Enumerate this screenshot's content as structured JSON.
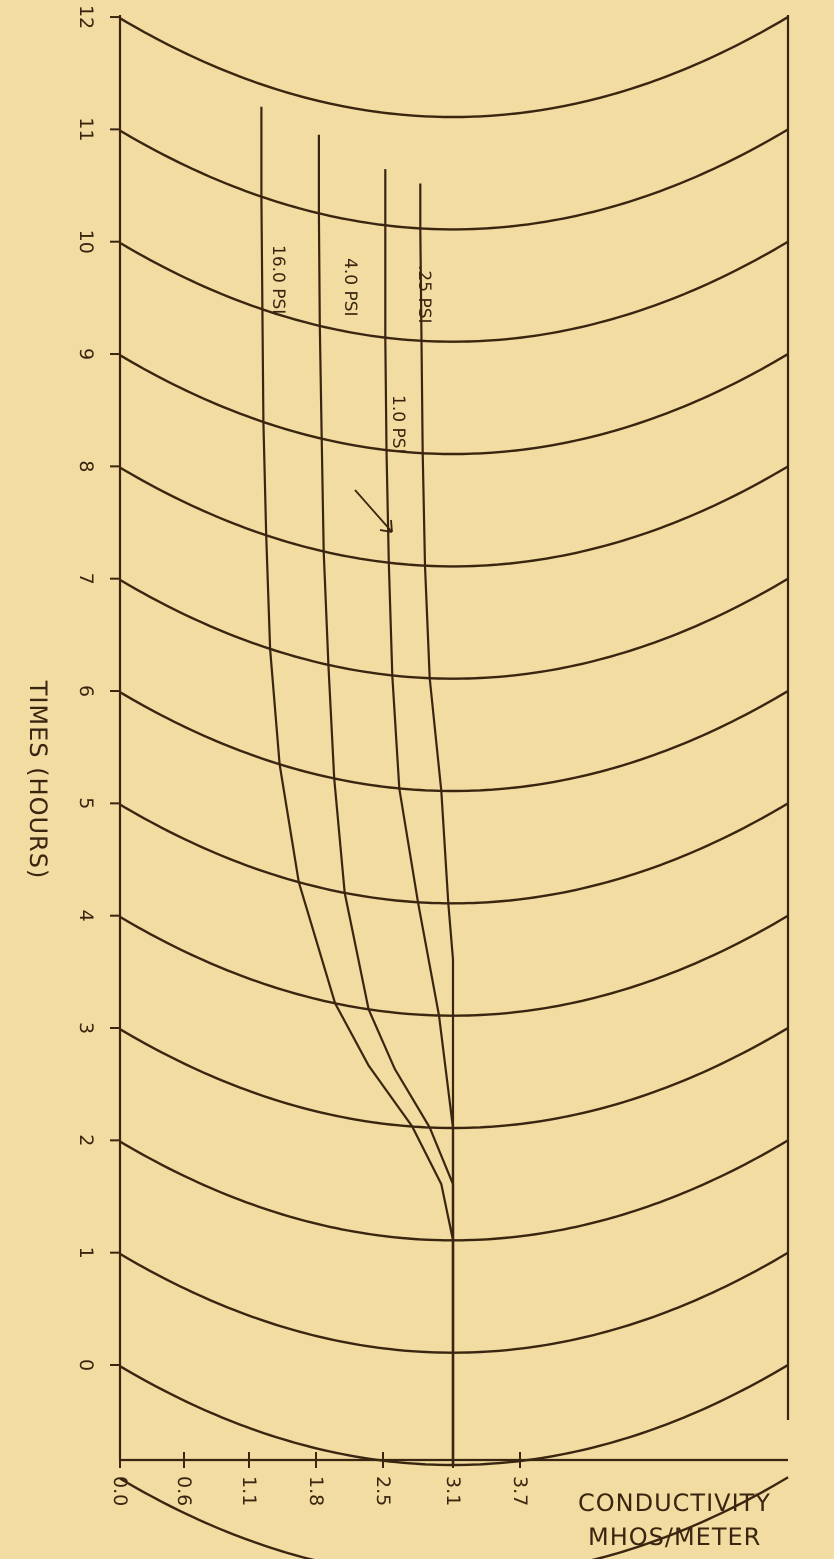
{
  "chart_data": {
    "type": "line",
    "title": "",
    "orientation": "rotated (time axis runs vertically on the page)",
    "ylabel": "TIMES (HOURS)",
    "xlabel_line1": "CONDUCTIVITY",
    "xlabel_line2": "MHOS/METER",
    "y_ticks": [
      "0",
      "1",
      "2",
      "3",
      "4",
      "5",
      "6",
      "7",
      "8",
      "9",
      "10",
      "11",
      "12"
    ],
    "x_ticks": [
      "0.0",
      "0.6",
      "1.1",
      "1.8",
      "2.5",
      "3.1",
      "3.7"
    ],
    "ylim": [
      0,
      12
    ],
    "time_grid_curved": true,
    "series": [
      {
        "name": ".25 PSI",
        "points": [
          [
            0,
            3.1
          ],
          [
            4.5,
            3.1
          ],
          [
            5.0,
            3.06
          ],
          [
            6.0,
            3.0
          ],
          [
            7.0,
            2.9
          ],
          [
            8.0,
            2.86
          ],
          [
            9.0,
            2.84
          ],
          [
            10.0,
            2.83
          ],
          [
            11.0,
            2.82
          ],
          [
            11.4,
            2.82
          ]
        ]
      },
      {
        "name": "1.0 PSI",
        "points": [
          [
            0,
            3.1
          ],
          [
            3.0,
            3.1
          ],
          [
            4.0,
            2.98
          ],
          [
            5.0,
            2.8
          ],
          [
            6.0,
            2.64
          ],
          [
            7.0,
            2.58
          ],
          [
            8.0,
            2.55
          ],
          [
            9.0,
            2.53
          ],
          [
            10.0,
            2.52
          ],
          [
            11.0,
            2.52
          ],
          [
            11.5,
            2.52
          ]
        ]
      },
      {
        "name": "4.0 PSI",
        "points": [
          [
            0,
            3.1
          ],
          [
            2.5,
            3.1
          ],
          [
            3.0,
            2.9
          ],
          [
            3.5,
            2.6
          ],
          [
            4.0,
            2.35
          ],
          [
            5.0,
            2.1
          ],
          [
            6.0,
            1.99
          ],
          [
            7.0,
            1.93
          ],
          [
            8.0,
            1.88
          ],
          [
            9.0,
            1.86
          ],
          [
            10.0,
            1.84
          ],
          [
            11.0,
            1.83
          ],
          [
            11.7,
            1.83
          ]
        ]
      },
      {
        "name": "16.0 PSI",
        "points": [
          [
            0,
            3.1
          ],
          [
            2.0,
            3.1
          ],
          [
            2.5,
            3.0
          ],
          [
            3.0,
            2.75
          ],
          [
            3.5,
            2.35
          ],
          [
            4.0,
            2.0
          ],
          [
            5.0,
            1.62
          ],
          [
            6.0,
            1.42
          ],
          [
            7.0,
            1.32
          ],
          [
            8.0,
            1.28
          ],
          [
            9.0,
            1.25
          ],
          [
            10.0,
            1.24
          ],
          [
            11.0,
            1.23
          ],
          [
            11.8,
            1.23
          ]
        ]
      }
    ]
  }
}
